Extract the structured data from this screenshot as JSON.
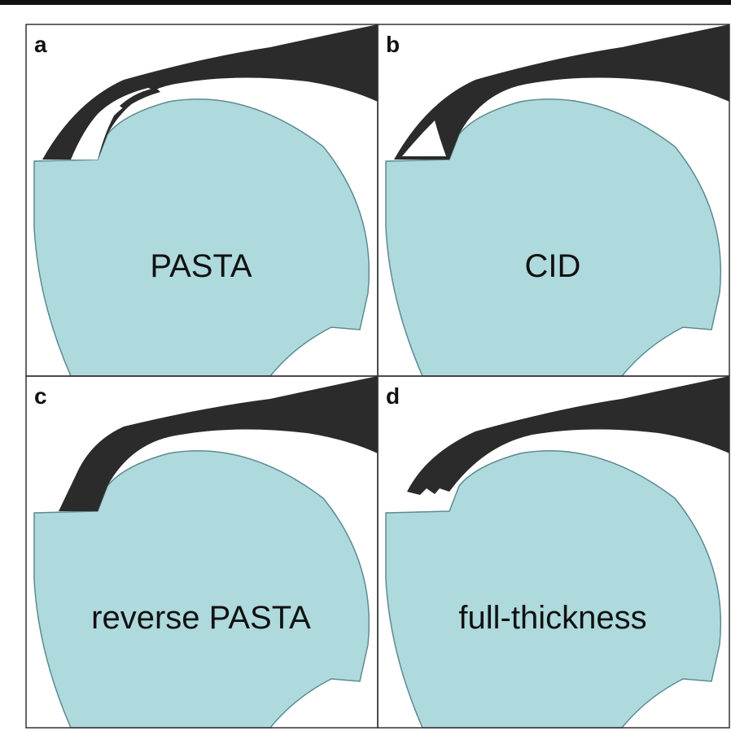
{
  "figure": {
    "colors": {
      "humeral_head": "#aedadd",
      "tendon": "#2b2b2b",
      "background": "#ffffff",
      "frame": "#333333"
    },
    "panels": [
      {
        "letter": "a",
        "caption": "PASTA",
        "tear_type": "partial articular-side"
      },
      {
        "letter": "b",
        "caption": "CID",
        "tear_type": "intratendinous"
      },
      {
        "letter": "c",
        "caption": "reverse PASTA",
        "tear_type": "partial bursal-side"
      },
      {
        "letter": "d",
        "caption": "full-thickness",
        "tear_type": "complete"
      }
    ]
  }
}
